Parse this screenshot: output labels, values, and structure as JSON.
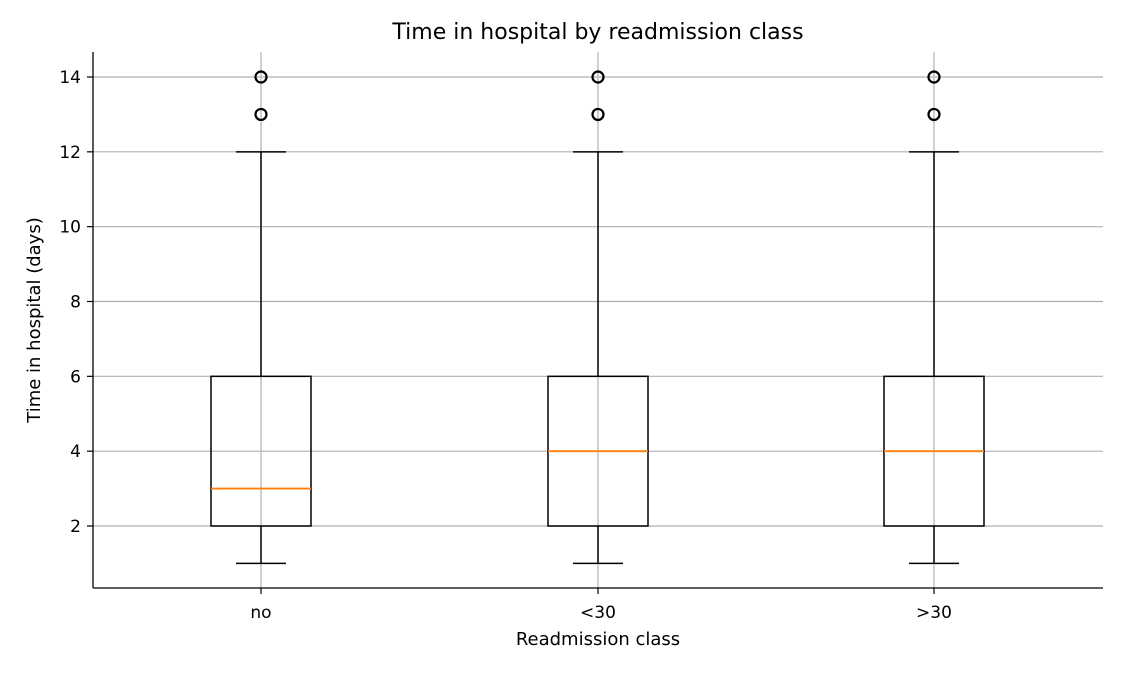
{
  "chart_data": {
    "type": "box",
    "title": "Time in hospital by readmission class",
    "xlabel": "Readmission class",
    "ylabel": "Time in hospital (days)",
    "ylim": [
      0.35,
      14.65
    ],
    "yticks": [
      2,
      4,
      6,
      8,
      10,
      12,
      14
    ],
    "grid": true,
    "categories": [
      "no",
      "<30",
      ">30"
    ],
    "boxes": [
      {
        "category": "no",
        "whisker_low": 1,
        "q1": 2,
        "median": 3,
        "q3": 6,
        "whisker_high": 12,
        "outliers": [
          13,
          14
        ]
      },
      {
        "category": "<30",
        "whisker_low": 1,
        "q1": 2,
        "median": 4,
        "q3": 6,
        "whisker_high": 12,
        "outliers": [
          13,
          14
        ]
      },
      {
        "category": ">30",
        "whisker_low": 1,
        "q1": 2,
        "median": 4,
        "q3": 6,
        "whisker_high": 12,
        "outliers": [
          13,
          14
        ]
      }
    ],
    "colors": {
      "box": "#000000",
      "median": "#ff7f0e",
      "grid": "#b0b0b0"
    }
  }
}
